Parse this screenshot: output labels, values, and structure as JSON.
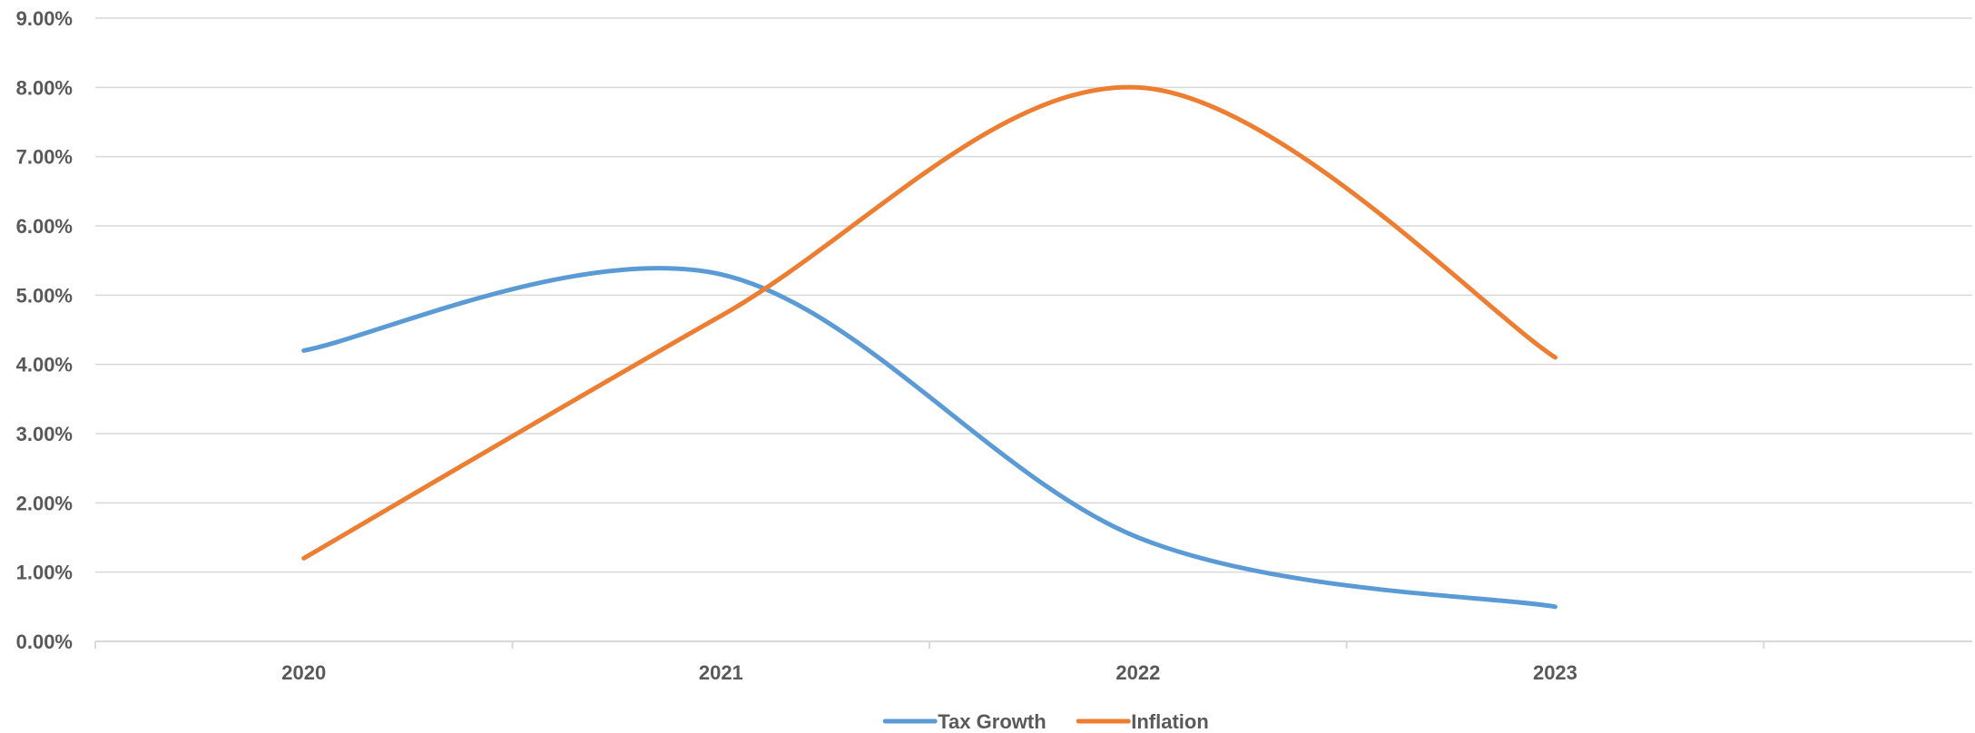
{
  "chart_data": {
    "type": "line",
    "smooth": true,
    "categories": [
      "2020",
      "2021",
      "2022",
      "2023"
    ],
    "series": [
      {
        "name": "Tax Growth",
        "values": [
          0.042,
          0.053,
          0.015,
          0.005
        ],
        "color": "#5B9BD5"
      },
      {
        "name": "Inflation",
        "values": [
          0.012,
          0.047,
          0.08,
          0.041
        ],
        "color": "#ED7D31"
      }
    ],
    "ylim": [
      0,
      0.09
    ],
    "ytick_step": 0.01,
    "yticks": [
      "0.00%",
      "1.00%",
      "2.00%",
      "3.00%",
      "4.00%",
      "5.00%",
      "6.00%",
      "7.00%",
      "8.00%",
      "9.00%"
    ],
    "grid": "horizontal",
    "legend": "bottom-center",
    "gridline_color": "#D9D9D9",
    "text_color": "#595959"
  }
}
